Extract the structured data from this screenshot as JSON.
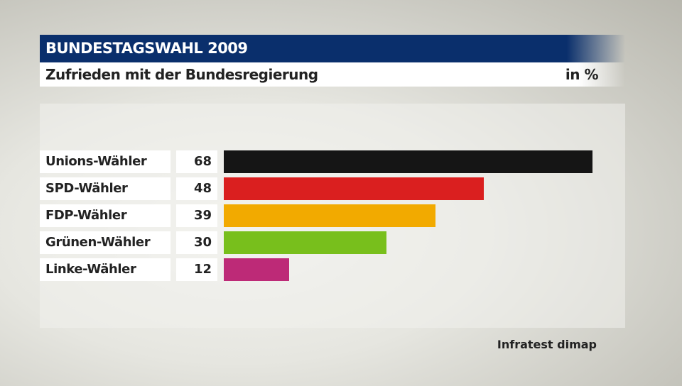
{
  "header": {
    "title": "BUNDESTAGSWAHL 2009",
    "subtitle": "Zufrieden mit der Bundesregierung",
    "unit": "in %"
  },
  "source": "Infratest dimap",
  "chart_data": {
    "type": "bar",
    "orientation": "horizontal",
    "title": "Zufrieden mit der Bundesregierung",
    "categories": [
      "Unions-Wähler",
      "SPD-Wähler",
      "FDP-Wähler",
      "Grünen-Wähler",
      "Linke-Wähler"
    ],
    "values": [
      68,
      48,
      39,
      30,
      12
    ],
    "colors": [
      "#151515",
      "#da1f1f",
      "#f2aa00",
      "#78bf1c",
      "#bd2a77"
    ],
    "unit": "in %",
    "grid": false
  }
}
